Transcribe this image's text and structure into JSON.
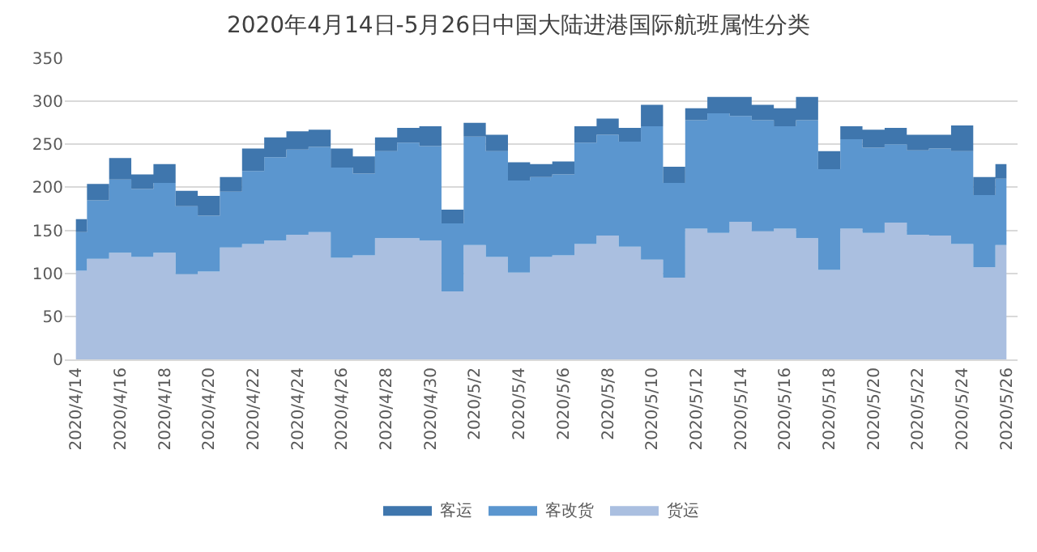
{
  "chart_data": {
    "type": "area",
    "title": "2020年4月14日-5月26日中国大陆进港国际航班属性分类",
    "stacked": true,
    "categories": [
      "2020/4/14",
      null,
      "2020/4/16",
      null,
      "2020/4/18",
      null,
      "2020/4/20",
      null,
      "2020/4/22",
      null,
      "2020/4/24",
      null,
      "2020/4/26",
      null,
      "2020/4/28",
      null,
      "2020/4/30",
      null,
      "2020/5/2",
      null,
      "2020/5/4",
      null,
      "2020/5/6",
      null,
      "2020/5/8",
      null,
      "2020/5/10",
      null,
      "2020/5/12",
      null,
      "2020/5/14",
      null,
      "2020/5/16",
      null,
      "2020/5/18",
      null,
      "2020/5/20",
      null,
      "2020/5/22",
      null,
      "2020/5/24",
      null,
      "2020/5/26"
    ],
    "series": [
      {
        "name": "货运",
        "color": "#aabfe0",
        "values": [
          103,
          117,
          124,
          119,
          124,
          99,
          102,
          130,
          134,
          138,
          145,
          148,
          118,
          121,
          141,
          141,
          138,
          79,
          133,
          119,
          101,
          119,
          121,
          134,
          144,
          131,
          116,
          95,
          152,
          147,
          160,
          149,
          152,
          141,
          104,
          152,
          147,
          159,
          145,
          144,
          134,
          107,
          133
        ]
      },
      {
        "name": "客改货",
        "color": "#5b96cf",
        "values": [
          45,
          68,
          85,
          79,
          81,
          79,
          65,
          65,
          85,
          97,
          99,
          99,
          105,
          95,
          101,
          111,
          110,
          79,
          126,
          123,
          107,
          93,
          94,
          118,
          117,
          122,
          155,
          110,
          126,
          139,
          123,
          129,
          119,
          137,
          117,
          104,
          99,
          91,
          98,
          101,
          108,
          84,
          77
        ]
      },
      {
        "name": "客运",
        "color": "#3f76ad",
        "values": [
          15,
          19,
          25,
          17,
          22,
          18,
          23,
          17,
          26,
          23,
          21,
          20,
          22,
          20,
          16,
          17,
          23,
          16,
          16,
          19,
          21,
          15,
          15,
          19,
          19,
          16,
          25,
          19,
          14,
          19,
          22,
          18,
          21,
          27,
          21,
          15,
          21,
          19,
          18,
          16,
          30,
          21,
          17
        ]
      }
    ],
    "ylim": [
      0,
      350
    ],
    "yticks": [
      0,
      50,
      100,
      150,
      200,
      250,
      300,
      350
    ],
    "grid": "y",
    "legend": "bottom"
  }
}
